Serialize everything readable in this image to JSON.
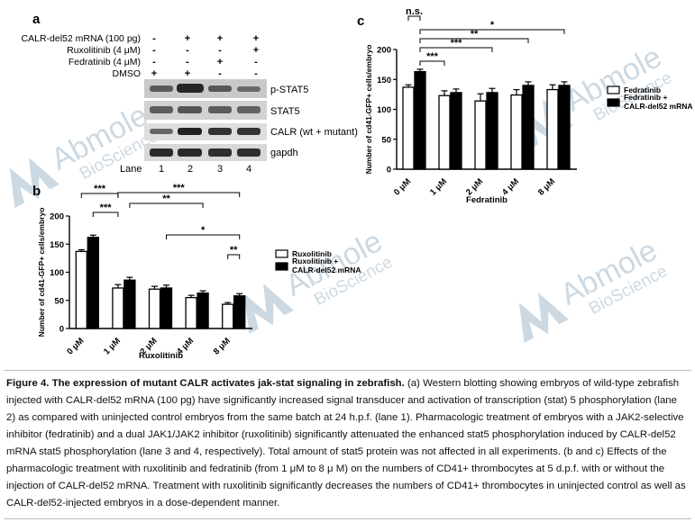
{
  "panel_a": {
    "letter": "a",
    "row_labels": [
      "CALR-del52 mRNA (100 pg)",
      "Ruxolitinib (4 μM)",
      "Fedratinib (4 μM)",
      "DMSO"
    ],
    "signs": [
      [
        "-",
        "+",
        "+",
        "+"
      ],
      [
        "-",
        "-",
        "-",
        "+"
      ],
      [
        "-",
        "-",
        "+",
        "-"
      ],
      [
        "+",
        "+",
        "-",
        "-"
      ]
    ],
    "band_labels": [
      "p-STAT5",
      "STAT5",
      "CALR (wt + mutant)",
      "gapdh"
    ],
    "lane_title": "Lane",
    "lanes": [
      "1",
      "2",
      "3",
      "4"
    ]
  },
  "watermark": {
    "brand": "Abmole",
    "sub": "BioScience",
    "color": "#c4d3df"
  },
  "chart_data": [
    {
      "type": "bar",
      "panel": "b",
      "categories": [
        "0 μM",
        "1 μM",
        "2 μM",
        "4 μM",
        "8 μM"
      ],
      "series": [
        {
          "name": "Ruxolitinib",
          "values": [
            137,
            72,
            70,
            55,
            43
          ],
          "errors": [
            3,
            6,
            5,
            4,
            3
          ],
          "color": "#ffffff"
        },
        {
          "name": "Ruxolitinib + CALR-del52 mRNA",
          "values": [
            162,
            86,
            72,
            63,
            58
          ],
          "errors": [
            4,
            5,
            5,
            4,
            4
          ],
          "color": "#000000"
        }
      ],
      "ylabel": "Number of cd41-GFP+ cells/embryo",
      "xlabel": "Ruxolitinib",
      "ylim": [
        0,
        200
      ],
      "yticks": [
        0,
        50,
        100,
        150,
        200
      ],
      "legend": "right",
      "significance": [
        "***",
        "***",
        "***",
        "**",
        "*",
        "**"
      ]
    },
    {
      "type": "bar",
      "panel": "c",
      "categories": [
        "0 μM",
        "1 μM",
        "2 μM",
        "4 μM",
        "8 μM"
      ],
      "series": [
        {
          "name": "Fedratinib",
          "values": [
            137,
            123,
            114,
            124,
            133
          ],
          "errors": [
            4,
            8,
            12,
            9,
            8
          ],
          "color": "#ffffff"
        },
        {
          "name": "Fedratinib + CALR-del52 mRNA",
          "values": [
            163,
            128,
            128,
            140,
            140
          ],
          "errors": [
            4,
            6,
            7,
            6,
            6
          ],
          "color": "#000000"
        }
      ],
      "ylabel": "Number of cd41-GFP+ cells/embryo",
      "xlabel": "Fedratinib",
      "ylim": [
        0,
        200
      ],
      "yticks": [
        0,
        50,
        100,
        150,
        200
      ],
      "legend": "right",
      "significance": [
        "n.s.",
        "*",
        "**",
        "***",
        "***"
      ]
    }
  ],
  "caption": {
    "title": "Figure 4. The expression of mutant CALR activates jak-stat signaling in zebrafish.",
    "text": " (a) Western blotting showing embryos of wild-type zebrafish injected with CALR-del52 mRNA (100 pg) have significantly increased signal transducer and activation of transcription (stat) 5 phosphorylation (lane 2) as compared with uninjected control embryos from the same batch at 24 h.p.f. (lane 1). Pharmacologic treatment of embryos with a JAK2-selective inhibitor (fedratinib) and a dual JAK1/JAK2 inhibitor (ruxolitinib) significantly attenuated the enhanced stat5 phosphorylation induced by CALR-del52 mRNA stat5 phosphorylation (lane 3 and 4, respectively). Total amount of stat5 protein was not affected in all experiments. (b and c) Effects of the pharmacologic treatment with ruxolitinib and fedratinib (from 1 μM to 8 μ M) on the numbers of CD41+ thrombocytes at 5 d.p.f. with or without the injection of CALR-del52 mRNA. Treatment with ruxolitinib significantly decreases the numbers of CD41+ thrombocytes in uninjected control as well as CALR-del52-injected embryos in a dose-dependent manner."
  }
}
